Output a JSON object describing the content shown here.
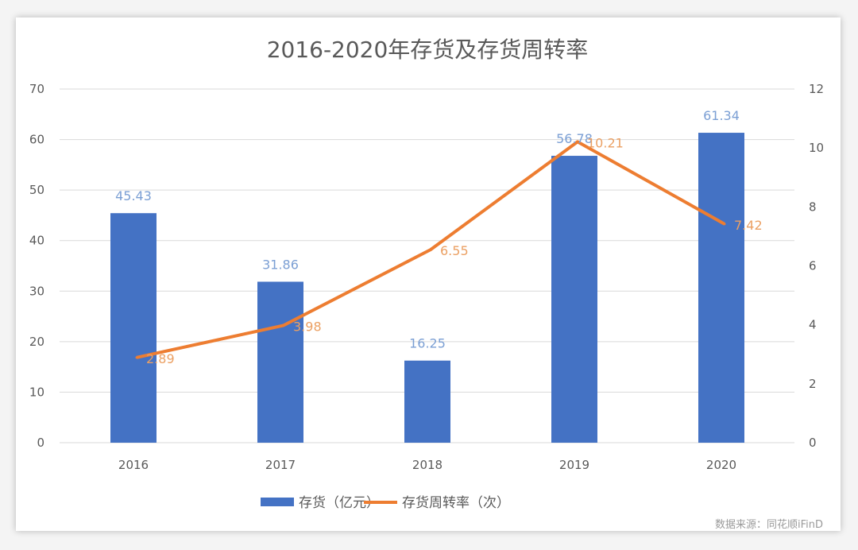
{
  "chart_data": {
    "type": "bar+line",
    "title": "2016-2020年存货及存货周转率",
    "categories": [
      "2016",
      "2017",
      "2018",
      "2019",
      "2020"
    ],
    "series": [
      {
        "name": "存货（亿元）",
        "type": "bar",
        "axis": "left",
        "color": "#4472c4",
        "values": [
          45.43,
          31.86,
          16.25,
          56.78,
          61.34
        ],
        "labels": [
          "45.43",
          "31.86",
          "16.25",
          "56.78",
          "61.34"
        ]
      },
      {
        "name": "存货周转率（次）",
        "type": "line",
        "axis": "right",
        "color": "#ed7d31",
        "values": [
          2.89,
          3.98,
          6.55,
          10.21,
          7.42
        ],
        "labels": [
          "2.89",
          "3.98",
          "6.55",
          "10.21",
          "7.42"
        ]
      }
    ],
    "y_left": {
      "lim": [
        0,
        70
      ],
      "ticks": [
        "0",
        "10",
        "20",
        "30",
        "40",
        "50",
        "60",
        "70"
      ]
    },
    "y_right": {
      "lim": [
        0,
        12
      ],
      "ticks": [
        "0",
        "2",
        "4",
        "6",
        "8",
        "10",
        "12"
      ]
    },
    "grid": true,
    "legend": "bottom"
  },
  "source": "数据来源：同花顺iFinD"
}
